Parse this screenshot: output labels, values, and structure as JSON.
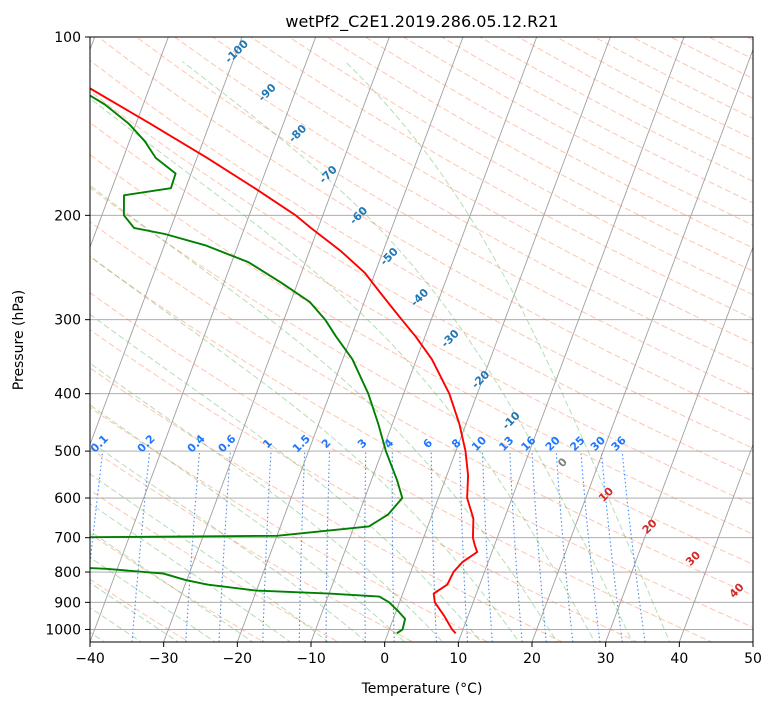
{
  "chart_data": {
    "type": "line",
    "title": "wetPf2_C2E1.2019.286.05.12.R21",
    "xlabel": "Temperature (°C)",
    "ylabel": "Pressure (hPa)",
    "xlim": [
      -40,
      50
    ],
    "ylim": [
      1050,
      100
    ],
    "y_scale": "log",
    "skew": true,
    "x_ticks": [
      -40,
      -30,
      -20,
      -10,
      0,
      10,
      20,
      30,
      40,
      50
    ],
    "y_ticks": [
      1000,
      900,
      800,
      700,
      600,
      500,
      400,
      300,
      200,
      100
    ],
    "grid": true,
    "colors": {
      "temperature": "#ff0000",
      "dewpoint": "#008000",
      "mixing_ratio": "#1f77ff",
      "dry_adiabat": "#ff7f50",
      "moist_adiabat": "#2ca02c",
      "isotherm": "#a0a0a0",
      "dry_adiabat_label": "#d62728",
      "moist_label": "#1f77b4",
      "zero_label": "#7f7f7f"
    },
    "series": [
      {
        "role": "temperature",
        "points": [
          {
            "p": 1015,
            "t": 9.2
          },
          {
            "p": 1000,
            "t": 8.5
          },
          {
            "p": 950,
            "t": 6.8
          },
          {
            "p": 900,
            "t": 4.8
          },
          {
            "p": 870,
            "t": 4.2
          },
          {
            "p": 840,
            "t": 5.6
          },
          {
            "p": 800,
            "t": 5.8
          },
          {
            "p": 770,
            "t": 6.5
          },
          {
            "p": 740,
            "t": 8.0
          },
          {
            "p": 720,
            "t": 7.3
          },
          {
            "p": 700,
            "t": 6.7
          },
          {
            "p": 650,
            "t": 5.8
          },
          {
            "p": 600,
            "t": 3.9
          },
          {
            "p": 550,
            "t": 2.9
          },
          {
            "p": 500,
            "t": 1.3
          },
          {
            "p": 450,
            "t": -0.9
          },
          {
            "p": 400,
            "t": -3.8
          },
          {
            "p": 350,
            "t": -7.9
          },
          {
            "p": 320,
            "t": -11.3
          },
          {
            "p": 300,
            "t": -14.0
          },
          {
            "p": 285,
            "t": -16.1
          },
          {
            "p": 270,
            "t": -18.3
          },
          {
            "p": 250,
            "t": -21.4
          },
          {
            "p": 230,
            "t": -25.7
          },
          {
            "p": 210,
            "t": -31.0
          },
          {
            "p": 200,
            "t": -33.7
          },
          {
            "p": 180,
            "t": -40.6
          },
          {
            "p": 160,
            "t": -48.6
          },
          {
            "p": 140,
            "t": -58.1
          },
          {
            "p": 120,
            "t": -69.3
          },
          {
            "p": 100,
            "t": -83.2
          }
        ]
      },
      {
        "role": "dewpoint",
        "points": [
          {
            "p": 1015,
            "t": 1.2
          },
          {
            "p": 1000,
            "t": 1.8
          },
          {
            "p": 960,
            "t": 1.6
          },
          {
            "p": 930,
            "t": 0.2
          },
          {
            "p": 900,
            "t": -1.4
          },
          {
            "p": 880,
            "t": -3.0
          },
          {
            "p": 870,
            "t": -10.0
          },
          {
            "p": 860,
            "t": -20.0
          },
          {
            "p": 840,
            "t": -27.0
          },
          {
            "p": 825,
            "t": -30.2
          },
          {
            "p": 805,
            "t": -33.5
          },
          {
            "p": 790,
            "t": -41.5
          },
          {
            "p": 780,
            "t": -52.0
          },
          {
            "p": 700,
            "t": -55.0
          },
          {
            "p": 695,
            "t": -20.0
          },
          {
            "p": 670,
            "t": -8.0
          },
          {
            "p": 640,
            "t": -6.0
          },
          {
            "p": 600,
            "t": -4.9
          },
          {
            "p": 560,
            "t": -6.5
          },
          {
            "p": 500,
            "t": -9.5
          },
          {
            "p": 450,
            "t": -11.9
          },
          {
            "p": 400,
            "t": -14.8
          },
          {
            "p": 350,
            "t": -18.7
          },
          {
            "p": 320,
            "t": -22.1
          },
          {
            "p": 300,
            "t": -24.4
          },
          {
            "p": 280,
            "t": -27.4
          },
          {
            "p": 260,
            "t": -32.2
          },
          {
            "p": 240,
            "t": -37.7
          },
          {
            "p": 225,
            "t": -44.3
          },
          {
            "p": 215,
            "t": -50.5
          },
          {
            "p": 210,
            "t": -55.0
          },
          {
            "p": 200,
            "t": -57.0
          },
          {
            "p": 185,
            "t": -58.0
          },
          {
            "p": 180,
            "t": -52.0
          },
          {
            "p": 170,
            "t": -52.1
          },
          {
            "p": 160,
            "t": -55.6
          },
          {
            "p": 150,
            "t": -57.9
          },
          {
            "p": 140,
            "t": -61.0
          },
          {
            "p": 130,
            "t": -65.2
          },
          {
            "p": 120,
            "t": -70.9
          },
          {
            "p": 110,
            "t": -76.6
          },
          {
            "p": 100,
            "t": -83.5
          }
        ]
      }
    ],
    "mixing_ratio_lines": [
      "0.1",
      "0.2",
      "0.4",
      "0.6",
      "1",
      "1.5",
      "2",
      "3",
      "4",
      "6",
      "8",
      "10",
      "13",
      "16",
      "20",
      "25",
      "30",
      "36"
    ],
    "moist_adiabat_labels": [
      "-100",
      "-90",
      "-80",
      "-70",
      "-60",
      "-50",
      "-40",
      "-30",
      "-20",
      "-10"
    ],
    "dry_adiabat_labels": [
      "0",
      "10",
      "20",
      "30",
      "40"
    ]
  }
}
